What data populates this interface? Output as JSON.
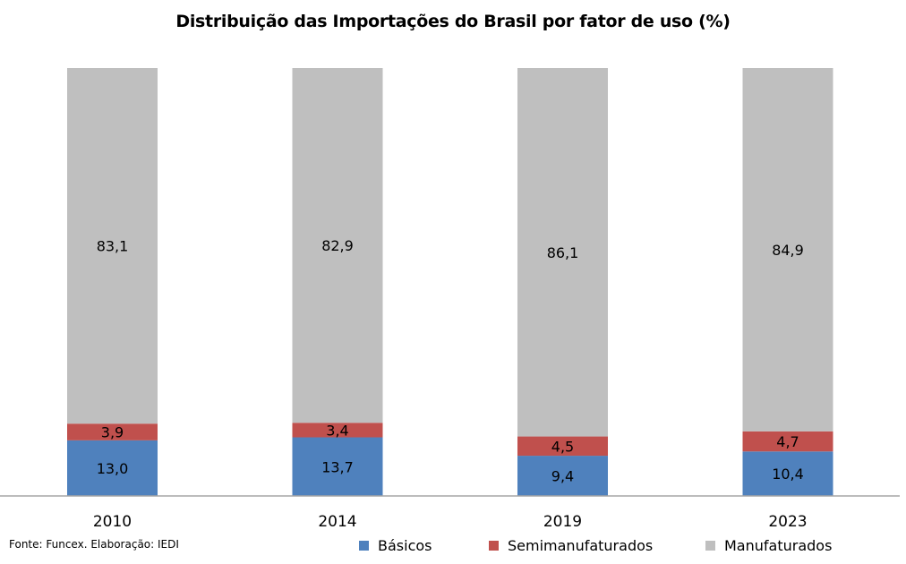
{
  "chart_data": {
    "type": "bar",
    "stacked": true,
    "title": "Distribuição das Importações do Brasil por fator de uso (%)",
    "xlabel": "",
    "ylabel": "",
    "categories": [
      "2010",
      "2014",
      "2019",
      "2023"
    ],
    "series": [
      {
        "name": "Básicos",
        "color": "#4f81bd",
        "values": [
          13.0,
          13.7,
          9.4,
          10.4
        ],
        "labels": [
          "13,0",
          "13,7",
          "9,4",
          "10,4"
        ]
      },
      {
        "name": "Semimanufaturados",
        "color": "#c0504d",
        "values": [
          3.9,
          3.4,
          4.5,
          4.7
        ],
        "labels": [
          "3,9",
          "3,4",
          "4,5",
          "4,7"
        ]
      },
      {
        "name": "Manufaturados",
        "color": "#bfbfbf",
        "values": [
          83.1,
          82.9,
          86.1,
          84.9
        ],
        "labels": [
          "83,1",
          "82,9",
          "86,1",
          "84,9"
        ]
      }
    ],
    "ylim": [
      0,
      100
    ],
    "grid": false,
    "legend_position": "bottom",
    "source": "Fonte: Funcex. Elaboração: IEDI"
  },
  "axis_color": "#a6a6a6"
}
